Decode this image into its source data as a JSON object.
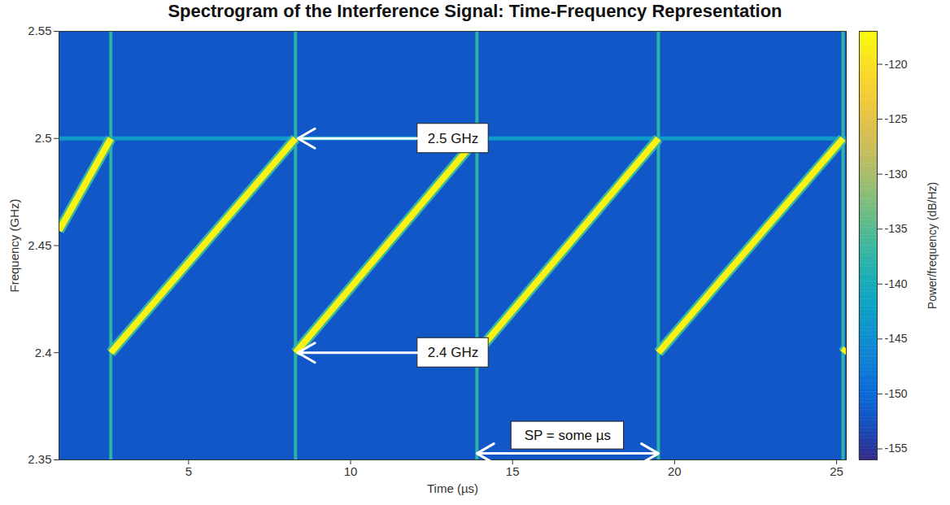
{
  "chart_data": {
    "type": "spectrogram",
    "title": "Spectrogram of the Interference Signal: Time-Frequency Representation",
    "x_label": "Time (µs)",
    "y_label": "Frequency (GHz)",
    "xlim": [
      1.0,
      25.3
    ],
    "xticks": [
      5,
      10,
      15,
      20,
      25
    ],
    "ylim": [
      2.35,
      2.55
    ],
    "yticks": [
      2.35,
      2.4,
      2.45,
      2.5,
      2.55
    ],
    "x": [
      1.0,
      2.6,
      2.6,
      2.6,
      8.3,
      8.3,
      8.3,
      13.9,
      13.9,
      13.9,
      19.5,
      19.5,
      19.5,
      25.2,
      25.2,
      25.2,
      25.3
    ],
    "series": [
      {
        "values": [
          2.457,
          2.5,
          null,
          2.4,
          2.5,
          null,
          2.4,
          2.5,
          null,
          2.4,
          2.5,
          null,
          2.4,
          2.5,
          null,
          2.4,
          2.402
        ],
        "power": -118
      }
    ],
    "background_power": -152,
    "sweep_boundaries": {
      "x": [
        2.6,
        8.3,
        13.9,
        19.5,
        25.2
      ],
      "power": -138
    },
    "spur": {
      "y": 2.5,
      "power": -143
    },
    "colorbar": {
      "label": "Power/frequency (dB/Hz)",
      "range": [
        -156,
        -117
      ],
      "ticks": [
        -155,
        -150,
        -145,
        -140,
        -135,
        -130,
        -125,
        -120
      ]
    },
    "annotations": [
      {
        "text": "2.5 GHz",
        "x": 8.3,
        "y": 2.5
      },
      {
        "text": "2.4 GHz",
        "x": 8.3,
        "y": 2.4
      },
      {
        "text": "SP = some µs",
        "x": [
          13.9,
          19.5
        ],
        "y": 2.353
      }
    ]
  }
}
